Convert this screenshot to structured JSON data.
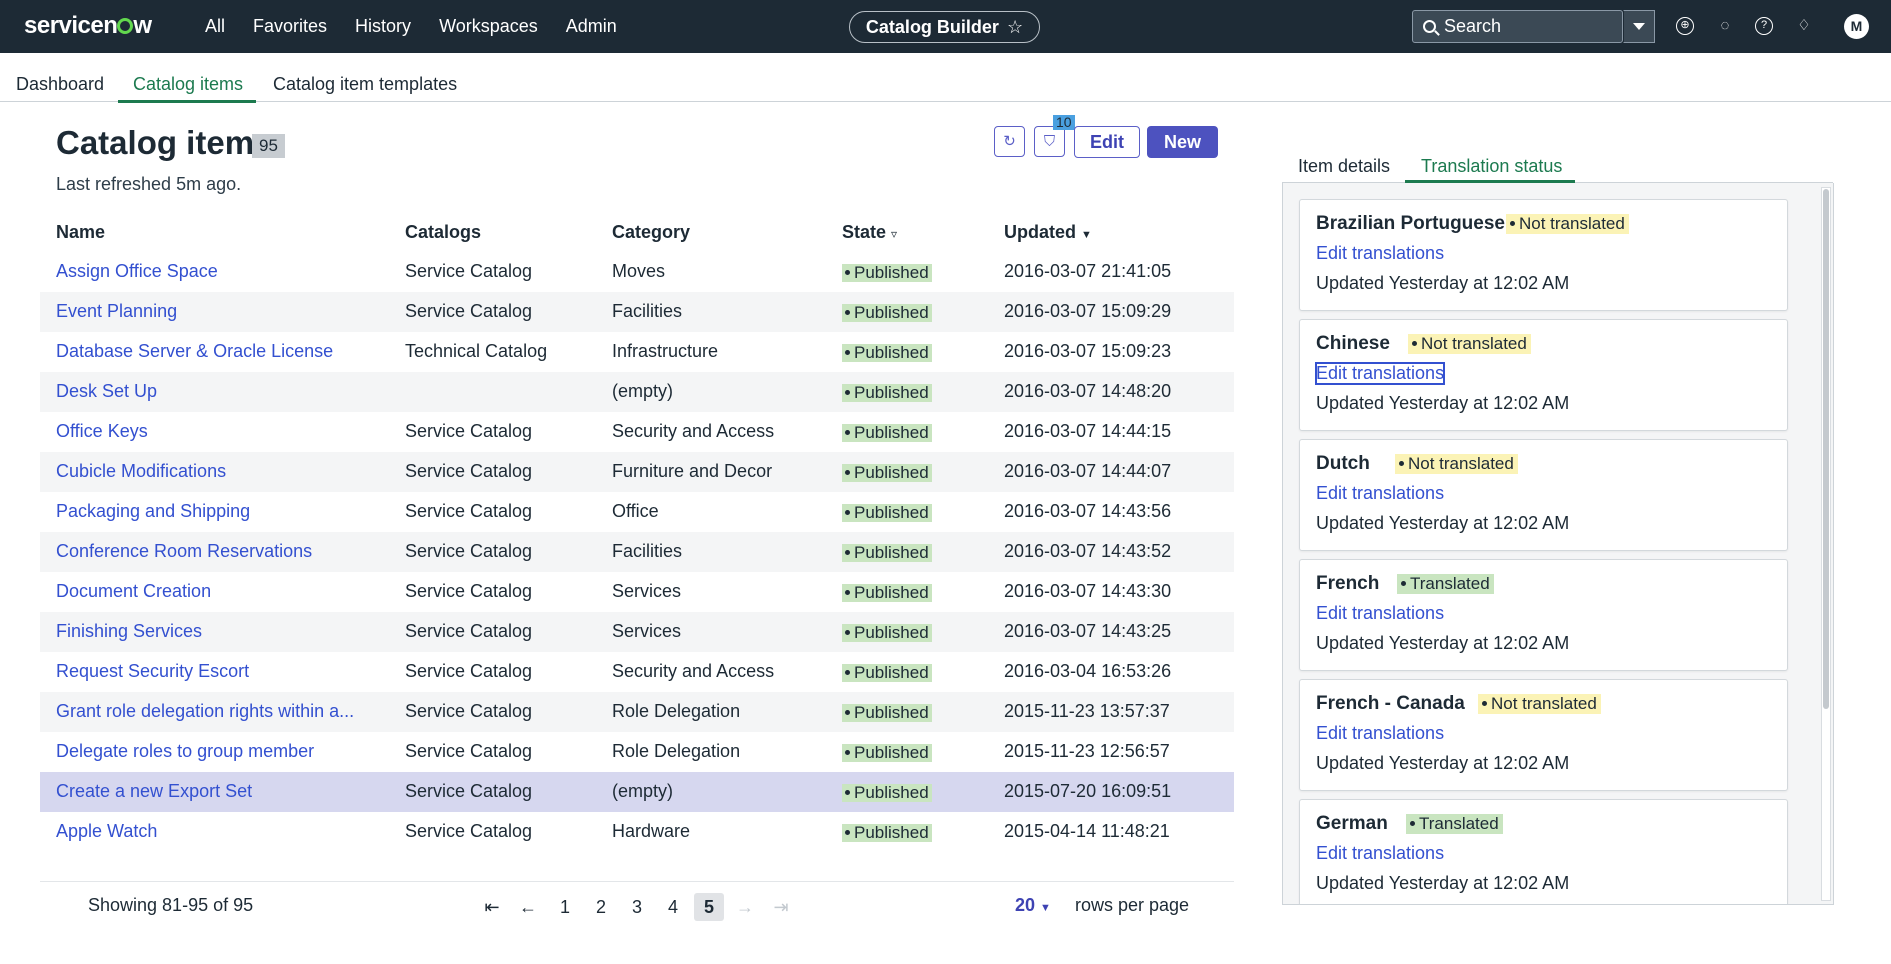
{
  "header": {
    "logo": "servicenow",
    "nav": [
      "All",
      "Favorites",
      "History",
      "Workspaces",
      "Admin"
    ],
    "app_title": "Catalog Builder",
    "search_placeholder": "Search",
    "avatar_initial": "M",
    "icons": [
      "globe-icon",
      "chat-icon",
      "help-icon",
      "bell-icon"
    ]
  },
  "subnav": {
    "tabs": [
      "Dashboard",
      "Catalog items",
      "Catalog item templates"
    ],
    "active": "Catalog items"
  },
  "main": {
    "title": "Catalog items",
    "count": "95",
    "refreshed": "Last refreshed 5m ago.",
    "filter_count": "10",
    "edit_label": "Edit",
    "new_label": "New"
  },
  "table": {
    "headers": [
      "Name",
      "Catalogs",
      "Category",
      "State",
      "Updated"
    ],
    "rows": [
      {
        "name": "Assign Office Space",
        "catalog": "Service Catalog",
        "category": "Moves",
        "state": "Published",
        "updated": "2016-03-07 21:41:05"
      },
      {
        "name": "Event Planning",
        "catalog": "Service Catalog",
        "category": "Facilities",
        "state": "Published",
        "updated": "2016-03-07 15:09:29"
      },
      {
        "name": "Database Server & Oracle License",
        "catalog": "Technical Catalog",
        "category": "Infrastructure",
        "state": "Published",
        "updated": "2016-03-07 15:09:23"
      },
      {
        "name": "Desk Set Up",
        "catalog": "",
        "category": "(empty)",
        "state": "Published",
        "updated": "2016-03-07 14:48:20"
      },
      {
        "name": "Office Keys",
        "catalog": "Service Catalog",
        "category": "Security and Access",
        "state": "Published",
        "updated": "2016-03-07 14:44:15"
      },
      {
        "name": "Cubicle Modifications",
        "catalog": "Service Catalog",
        "category": "Furniture and Decor",
        "state": "Published",
        "updated": "2016-03-07 14:44:07"
      },
      {
        "name": "Packaging and Shipping",
        "catalog": "Service Catalog",
        "category": "Office",
        "state": "Published",
        "updated": "2016-03-07 14:43:56"
      },
      {
        "name": "Conference Room Reservations",
        "catalog": "Service Catalog",
        "category": "Facilities",
        "state": "Published",
        "updated": "2016-03-07 14:43:52"
      },
      {
        "name": "Document Creation",
        "catalog": "Service Catalog",
        "category": "Services",
        "state": "Published",
        "updated": "2016-03-07 14:43:30"
      },
      {
        "name": "Finishing Services",
        "catalog": "Service Catalog",
        "category": "Services",
        "state": "Published",
        "updated": "2016-03-07 14:43:25"
      },
      {
        "name": "Request Security Escort",
        "catalog": "Service Catalog",
        "category": "Security and Access",
        "state": "Published",
        "updated": "2016-03-04 16:53:26"
      },
      {
        "name": "Grant role delegation rights within a...",
        "catalog": "Service Catalog",
        "category": "Role Delegation",
        "state": "Published",
        "updated": "2015-11-23 13:57:37"
      },
      {
        "name": "Delegate roles to group member",
        "catalog": "Service Catalog",
        "category": "Role Delegation",
        "state": "Published",
        "updated": "2015-11-23 12:56:57"
      },
      {
        "name": "Create a new Export Set",
        "catalog": "Service Catalog",
        "category": "(empty)",
        "state": "Published",
        "updated": "2015-07-20 16:09:51"
      },
      {
        "name": "Apple Watch",
        "catalog": "Service Catalog",
        "category": "Hardware",
        "state": "Published",
        "updated": "2015-04-14 11:48:21"
      }
    ],
    "selected_row": "Create a new Export Set"
  },
  "pagination": {
    "showing": "Showing 81-95 of 95",
    "pages": [
      "1",
      "2",
      "3",
      "4",
      "5"
    ],
    "current": "5",
    "rows_per_page": "20",
    "rows_per_page_label": "rows per page"
  },
  "panel": {
    "tabs": [
      "Item details",
      "Translation status"
    ],
    "active": "Translation status",
    "cards": [
      {
        "language": "Brazilian Portuguese",
        "status": "Not translated",
        "link": "Edit translations",
        "updated": "Updated Yesterday at 12:02 AM"
      },
      {
        "language": "Chinese",
        "status": "Not translated",
        "link": "Edit translations",
        "updated": "Updated Yesterday at 12:02 AM"
      },
      {
        "language": "Dutch",
        "status": "Not translated",
        "link": "Edit translations",
        "updated": "Updated Yesterday at 12:02 AM"
      },
      {
        "language": "French",
        "status": "Translated",
        "link": "Edit translations",
        "updated": "Updated Yesterday at 12:02 AM"
      },
      {
        "language": "French - Canada",
        "status": "Not translated",
        "link": "Edit translations",
        "updated": "Updated Yesterday at 12:02 AM"
      },
      {
        "language": "German",
        "status": "Translated",
        "link": "Edit translations",
        "updated": "Updated Yesterday at 12:02 AM"
      }
    ]
  },
  "colors": {
    "topbar": "#1d2a35",
    "accent_green": "#1c7a4f",
    "link_blue": "#3350d0",
    "primary_button": "#4d52bf",
    "published_badge": "#c9e5c0",
    "not_translated_badge": "#fbf3b6"
  }
}
